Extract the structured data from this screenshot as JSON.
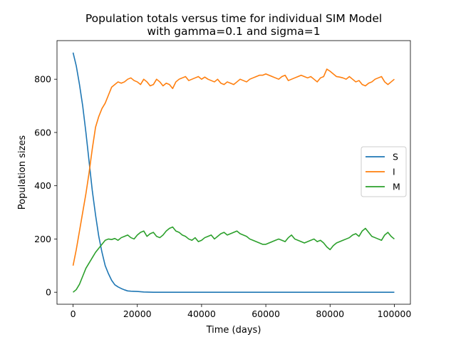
{
  "chart_data": {
    "type": "line",
    "title": "Population totals versus time for individual SIM Model",
    "subtitle": "with gamma=0.1 and sigma=1",
    "xlabel": "Time (days)",
    "ylabel": "Population sizes",
    "xlim": [
      -5000,
      105000
    ],
    "ylim": [
      -45,
      945
    ],
    "xticks": [
      0,
      20000,
      40000,
      60000,
      80000,
      100000
    ],
    "yticks": [
      0,
      200,
      400,
      600,
      800
    ],
    "xtick_labels": [
      "0",
      "20000",
      "40000",
      "60000",
      "80000",
      "100000"
    ],
    "ytick_labels": [
      "0",
      "200",
      "400",
      "600",
      "800"
    ],
    "grid": false,
    "legend_position": "center-right",
    "series": [
      {
        "name": "S",
        "color": "#1f77b4",
        "x": [
          0,
          1000,
          2000,
          3000,
          4000,
          5000,
          6000,
          7000,
          8000,
          9000,
          10000,
          11000,
          12000,
          13000,
          14000,
          15000,
          16000,
          17000,
          18000,
          20000,
          22000,
          25000,
          30000,
          40000,
          50000,
          60000,
          70000,
          80000,
          90000,
          100000
        ],
        "y": [
          900,
          850,
          780,
          700,
          600,
          490,
          380,
          290,
          210,
          150,
          100,
          70,
          45,
          28,
          20,
          14,
          9,
          5,
          4,
          3,
          1,
          0,
          0,
          0,
          0,
          0,
          0,
          0,
          0,
          0
        ]
      },
      {
        "name": "I",
        "color": "#ff7f0e",
        "x": [
          0,
          1000,
          2000,
          3000,
          4000,
          5000,
          6000,
          7000,
          8000,
          9000,
          10000,
          11000,
          12000,
          13000,
          14000,
          15000,
          16000,
          17000,
          18000,
          19000,
          20000,
          21000,
          22000,
          23000,
          24000,
          25000,
          26000,
          27000,
          28000,
          29000,
          30000,
          31000,
          32000,
          33000,
          34000,
          35000,
          36000,
          37000,
          38000,
          39000,
          40000,
          41000,
          42000,
          43000,
          44000,
          45000,
          46000,
          47000,
          48000,
          49000,
          50000,
          51000,
          52000,
          53000,
          54000,
          55000,
          56000,
          57000,
          58000,
          59000,
          60000,
          61000,
          62000,
          63000,
          64000,
          65000,
          66000,
          67000,
          68000,
          69000,
          70000,
          71000,
          72000,
          73000,
          74000,
          75000,
          76000,
          77000,
          78000,
          79000,
          80000,
          81000,
          82000,
          83000,
          84000,
          85000,
          86000,
          87000,
          88000,
          89000,
          90000,
          91000,
          92000,
          93000,
          94000,
          95000,
          96000,
          97000,
          98000,
          99000,
          100000
        ],
        "y": [
          100,
          160,
          230,
          300,
          370,
          450,
          540,
          620,
          660,
          690,
          710,
          740,
          770,
          780,
          790,
          785,
          790,
          800,
          805,
          795,
          790,
          780,
          800,
          790,
          775,
          780,
          800,
          790,
          775,
          785,
          780,
          765,
          790,
          800,
          805,
          810,
          795,
          800,
          805,
          810,
          800,
          808,
          800,
          795,
          790,
          800,
          785,
          780,
          790,
          785,
          780,
          790,
          800,
          795,
          790,
          800,
          805,
          810,
          815,
          815,
          820,
          815,
          810,
          805,
          800,
          810,
          815,
          795,
          800,
          805,
          810,
          815,
          810,
          805,
          810,
          800,
          790,
          805,
          810,
          838,
          830,
          820,
          810,
          808,
          805,
          800,
          810,
          800,
          790,
          795,
          780,
          775,
          785,
          790,
          800,
          805,
          810,
          790,
          780,
          790,
          800
        ]
      },
      {
        "name": "M",
        "color": "#2ca02c",
        "x": [
          0,
          1000,
          2000,
          3000,
          4000,
          5000,
          6000,
          7000,
          8000,
          9000,
          10000,
          11000,
          12000,
          13000,
          14000,
          15000,
          16000,
          17000,
          18000,
          19000,
          20000,
          21000,
          22000,
          23000,
          24000,
          25000,
          26000,
          27000,
          28000,
          29000,
          30000,
          31000,
          32000,
          33000,
          34000,
          35000,
          36000,
          37000,
          38000,
          39000,
          40000,
          41000,
          42000,
          43000,
          44000,
          45000,
          46000,
          47000,
          48000,
          49000,
          50000,
          51000,
          52000,
          53000,
          54000,
          55000,
          56000,
          57000,
          58000,
          59000,
          60000,
          61000,
          62000,
          63000,
          64000,
          65000,
          66000,
          67000,
          68000,
          69000,
          70000,
          71000,
          72000,
          73000,
          74000,
          75000,
          76000,
          77000,
          78000,
          79000,
          80000,
          81000,
          82000,
          83000,
          84000,
          85000,
          86000,
          87000,
          88000,
          89000,
          90000,
          91000,
          92000,
          93000,
          94000,
          95000,
          96000,
          97000,
          98000,
          99000,
          100000
        ],
        "y": [
          0,
          10,
          30,
          60,
          90,
          110,
          130,
          150,
          165,
          180,
          195,
          200,
          198,
          202,
          195,
          205,
          210,
          215,
          205,
          200,
          215,
          225,
          230,
          210,
          220,
          225,
          210,
          205,
          215,
          230,
          240,
          245,
          230,
          225,
          215,
          210,
          200,
          195,
          205,
          190,
          195,
          205,
          210,
          215,
          200,
          210,
          220,
          225,
          215,
          220,
          225,
          230,
          220,
          215,
          210,
          200,
          195,
          190,
          185,
          180,
          180,
          185,
          190,
          195,
          200,
          195,
          190,
          205,
          215,
          200,
          195,
          190,
          185,
          190,
          195,
          200,
          190,
          195,
          185,
          170,
          160,
          175,
          185,
          190,
          195,
          200,
          205,
          215,
          220,
          210,
          230,
          240,
          225,
          210,
          205,
          200,
          195,
          215,
          225,
          210,
          200
        ]
      }
    ]
  }
}
